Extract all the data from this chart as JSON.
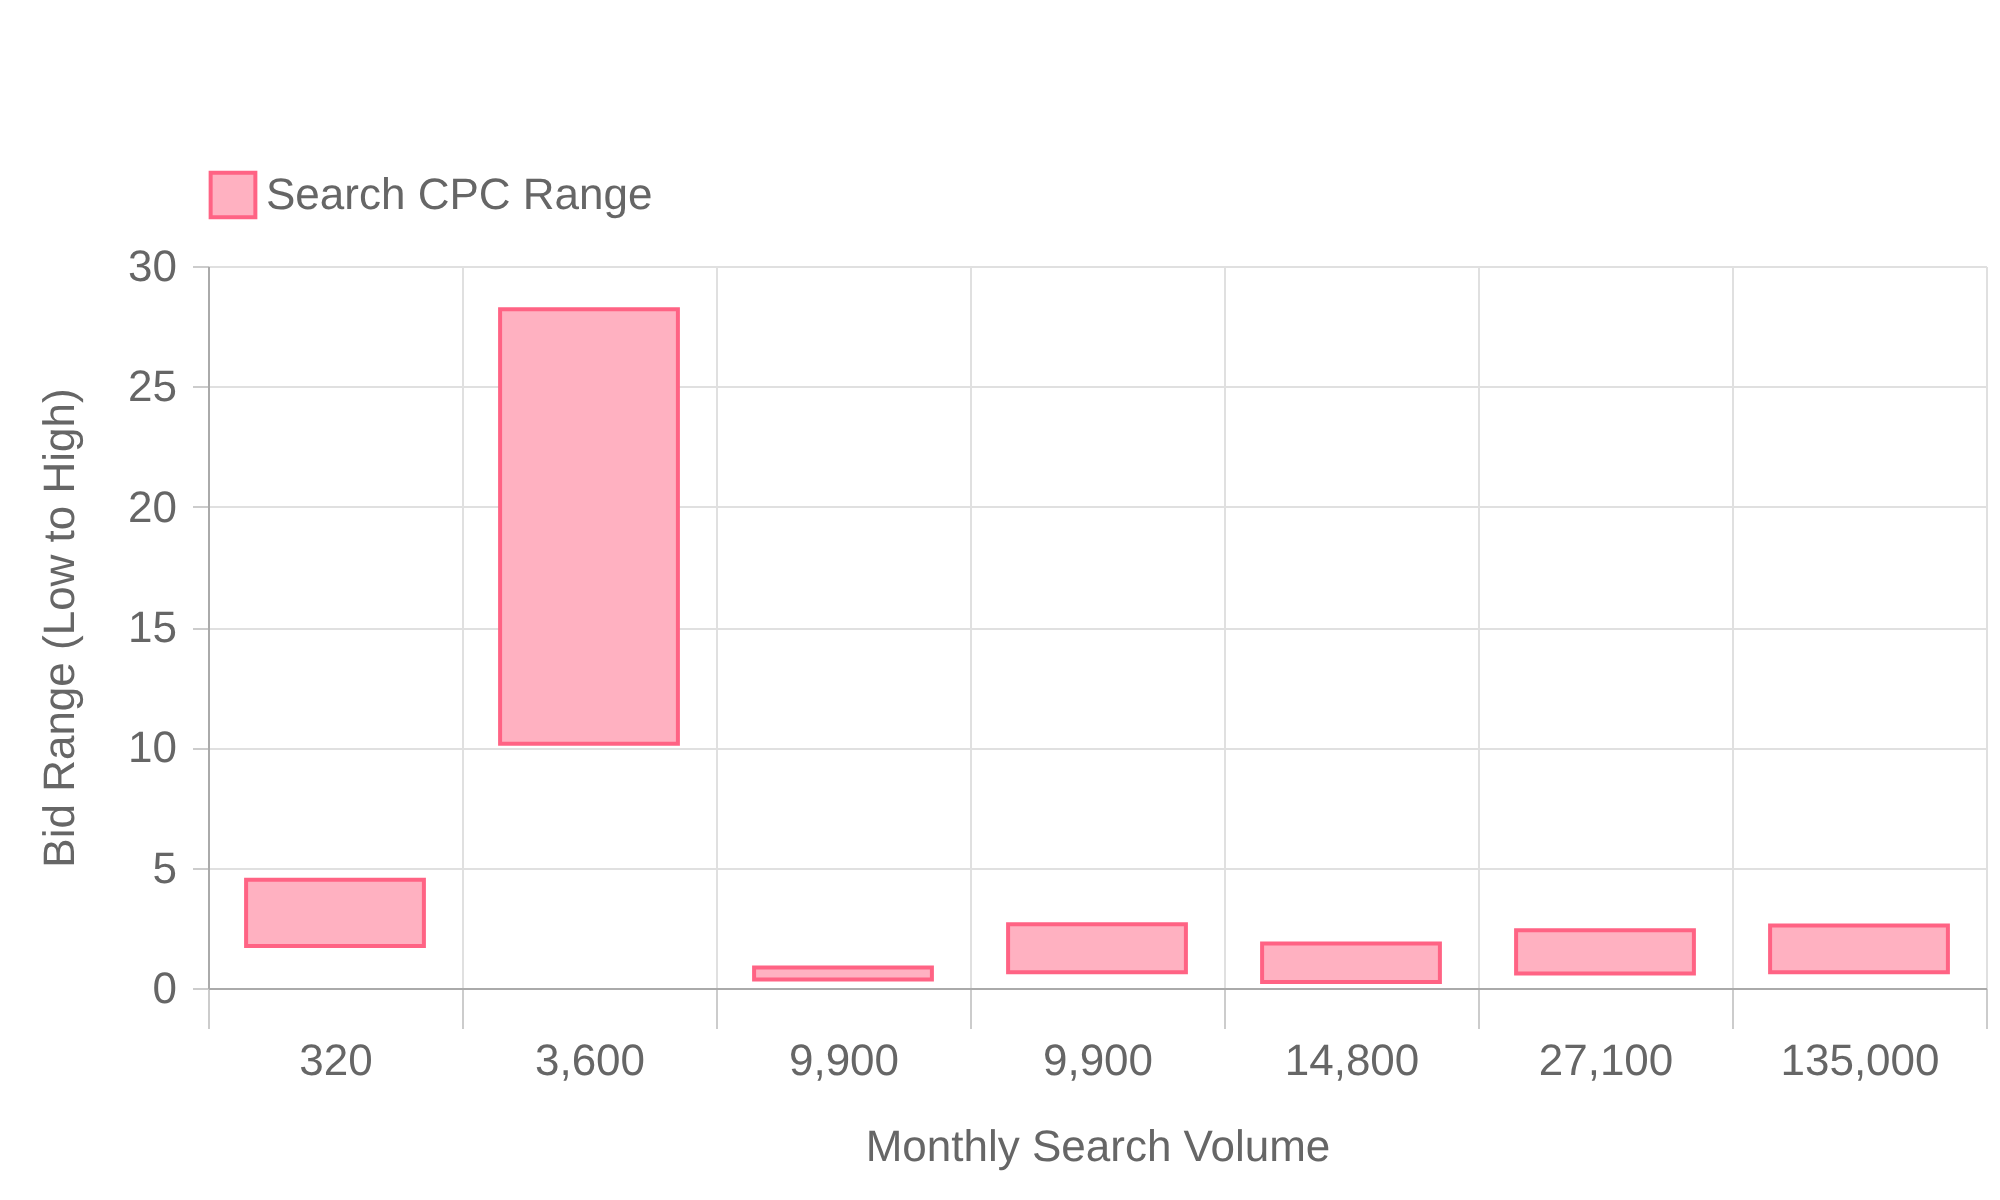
{
  "chart_data": {
    "type": "bar",
    "xlabel": "Monthly Search Volume",
    "ylabel": "Bid Range (Low to High)",
    "categories": [
      "320",
      "3,600",
      "9,900",
      "9,900",
      "14,800",
      "27,100",
      "135,000"
    ],
    "series": [
      {
        "name": "Search CPC Range",
        "color": "#ffb1c1",
        "base": [
          1.75,
          10.15,
          0.35,
          0.65,
          0.25,
          0.6,
          0.65
        ],
        "values": [
          2.75,
          18.05,
          0.5,
          2.0,
          1.6,
          1.8,
          1.95
        ]
      }
    ],
    "ylim": [
      0,
      30
    ],
    "yticks": [
      0,
      5,
      10,
      15,
      20,
      25,
      30
    ],
    "grid": true,
    "legend": "top"
  }
}
